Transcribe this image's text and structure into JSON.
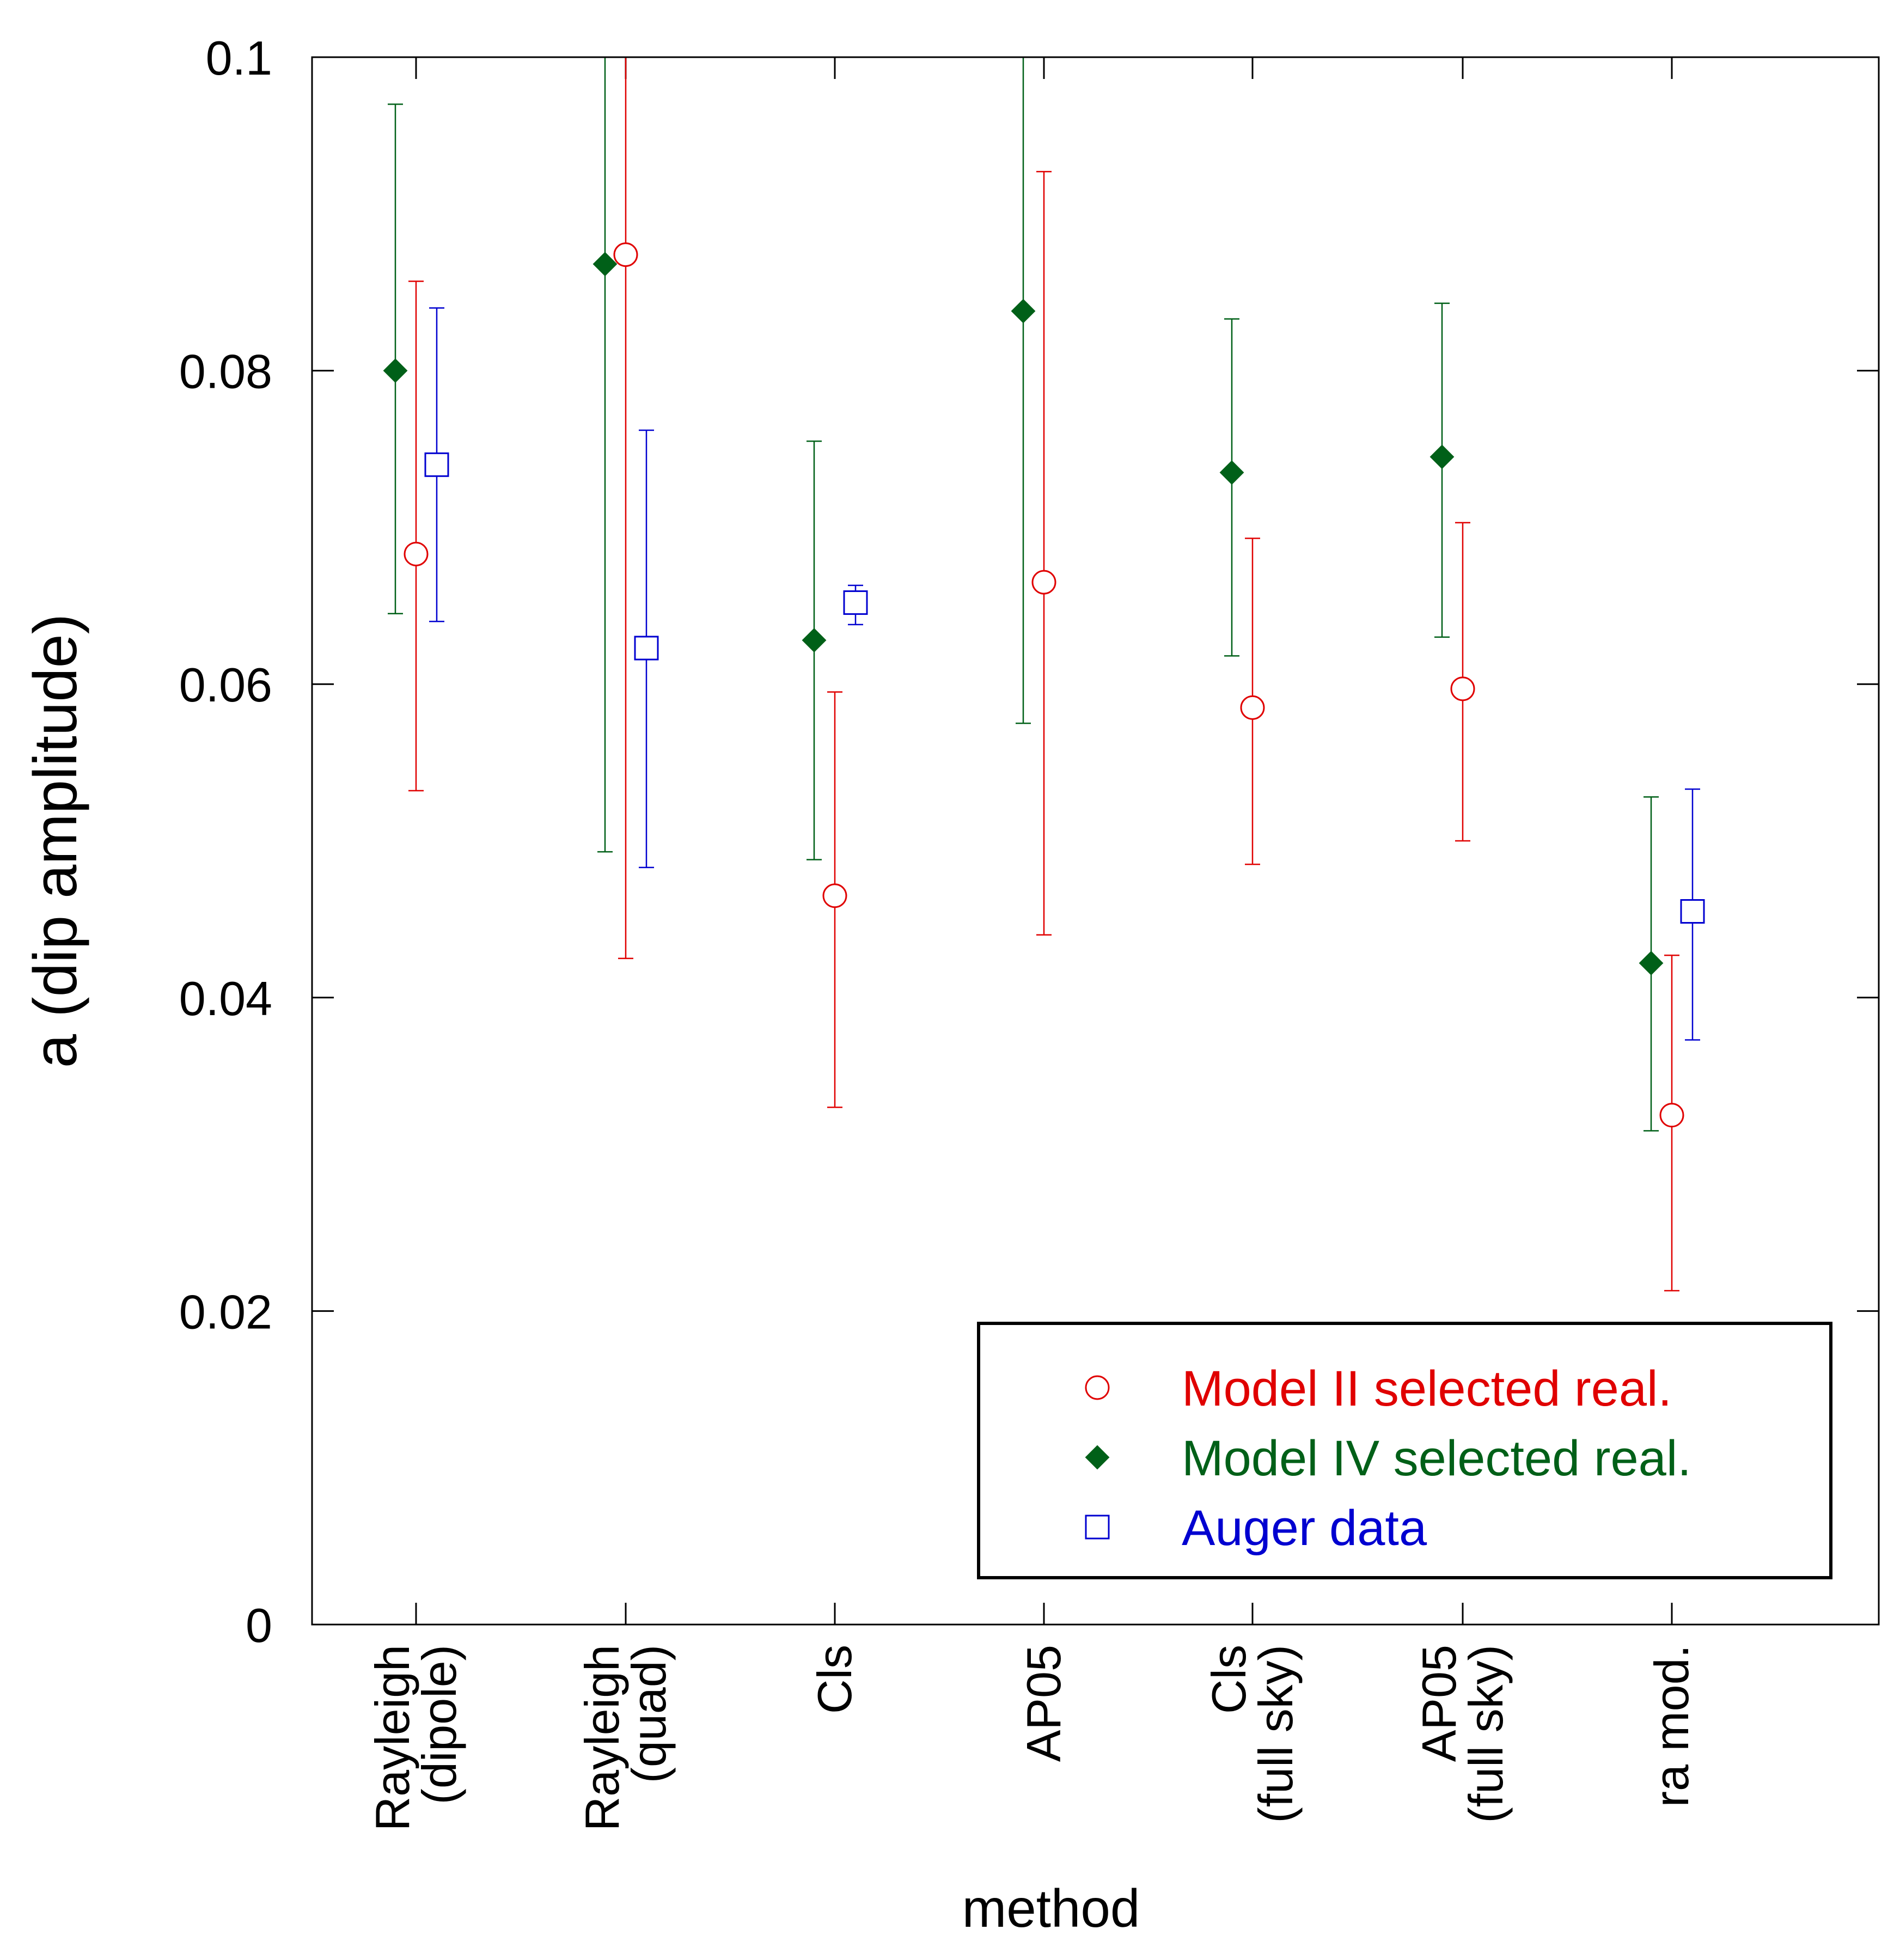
{
  "chart_data": {
    "type": "scatter",
    "xlabel": "method",
    "ylabel": "a (dip amplitude)",
    "ylim": [
      0,
      0.1
    ],
    "yticks": [
      "0",
      "0.02",
      "0.04",
      "0.06",
      "0.08",
      "0.1"
    ],
    "ytick_values": [
      0,
      0.02,
      0.04,
      0.06,
      0.08,
      0.1
    ],
    "categories": [
      [
        "Rayleigh",
        "(dipole)"
      ],
      [
        "Rayleigh",
        "(quad)"
      ],
      [
        "Cls"
      ],
      [
        "AP05"
      ],
      [
        "Cls",
        "(full sky)"
      ],
      [
        "AP05",
        "(full sky)"
      ],
      [
        "ra mod."
      ]
    ],
    "legend_position": "bottom-right",
    "grid": false,
    "series": [
      {
        "name": "Model II selected real.",
        "color": "#e00000",
        "marker": "open-circle",
        "values": [
          0.0683,
          0.0874,
          0.0465,
          0.0665,
          0.0585,
          0.0597,
          0.0325
        ],
        "err_low": [
          0.0532,
          0.0425,
          0.033,
          0.044,
          0.0485,
          0.05,
          0.0213
        ],
        "err_high": [
          0.0857,
          0.1,
          0.0595,
          0.0927,
          0.0693,
          0.0703,
          0.0427
        ]
      },
      {
        "name": "Model IV selected real.",
        "color": "#006018",
        "marker": "filled-diamond",
        "values": [
          0.08,
          0.0868,
          0.0628,
          0.0838,
          0.0735,
          0.0745,
          0.0422
        ],
        "err_low": [
          0.0645,
          0.0493,
          0.0488,
          0.0575,
          0.0618,
          0.063,
          0.0315
        ],
        "err_high": [
          0.097,
          0.1,
          0.0755,
          0.1,
          0.0833,
          0.0843,
          0.0528
        ]
      },
      {
        "name": "Auger data",
        "color": "#0000d0",
        "marker": "open-square",
        "values": [
          0.074,
          0.0623,
          0.0652,
          null,
          null,
          null,
          0.0455
        ],
        "err_low": [
          0.064,
          0.0483,
          0.0638,
          null,
          null,
          null,
          0.0373
        ],
        "err_high": [
          0.084,
          0.0762,
          0.0663,
          null,
          null,
          null,
          0.0533
        ]
      }
    ]
  }
}
